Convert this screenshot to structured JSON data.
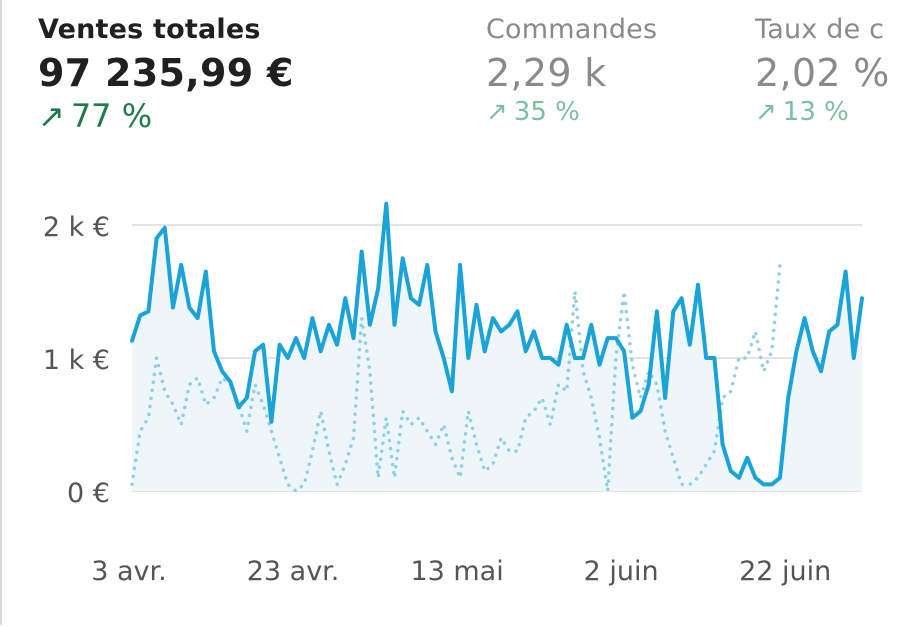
{
  "metrics": [
    {
      "label": "Ventes totales",
      "value": "97 235,99 €",
      "delta": "77 %",
      "arrow": "↗",
      "active": true
    },
    {
      "label": "Commandes",
      "value": "2,29 k",
      "delta": "35 %",
      "arrow": "↗",
      "active": false
    },
    {
      "label": "Taux de c",
      "value": "2,02 %",
      "delta": "13 %",
      "arrow": "↗",
      "active": false
    }
  ],
  "colors": {
    "current_line": "#1aa3d9",
    "previous_line": "#8fd0e8",
    "area_fill": "#eef6f9",
    "grid": "#dcdcdc",
    "positive_active": "#1f7a4c",
    "positive_muted": "#7cbf9e"
  },
  "chart_data": {
    "type": "line",
    "y_ticks": [
      "2 k €",
      "1 k €",
      "0 €"
    ],
    "y_tick_values": [
      2000,
      1000,
      0
    ],
    "ylim": [
      0,
      2000
    ],
    "x_ticks": [
      "3 avr.",
      "23 avr.",
      "13 mai",
      "2 juin",
      "22 juin"
    ],
    "x_tick_days": [
      0,
      20,
      40,
      60,
      80
    ],
    "xlim": [
      0,
      89
    ],
    "grid": true,
    "series": [
      {
        "style": "solid",
        "values": [
          1130,
          1320,
          1350,
          1900,
          1980,
          1380,
          1700,
          1380,
          1300,
          1650,
          1050,
          900,
          820,
          630,
          700,
          1050,
          1100,
          520,
          1100,
          1000,
          1150,
          1000,
          1300,
          1050,
          1250,
          1100,
          1450,
          1150,
          1800,
          1250,
          1520,
          2160,
          1250,
          1750,
          1450,
          1400,
          1700,
          1200,
          1000,
          750,
          1700,
          1000,
          1400,
          1050,
          1300,
          1200,
          1250,
          1350,
          1050,
          1200,
          1000,
          1000,
          950,
          1250,
          1000,
          1000,
          1250,
          950,
          1150,
          1150,
          1050,
          550,
          600,
          800,
          1350,
          700,
          1350,
          1450,
          1100,
          1550,
          1000,
          1000,
          350,
          150,
          100,
          250,
          100,
          50,
          50,
          100,
          700,
          1050,
          1300,
          1050,
          900,
          1200,
          1250,
          1650,
          1000,
          1450
        ]
      },
      {
        "style": "dotted",
        "values": [
          50,
          450,
          550,
          1000,
          750,
          650,
          500,
          800,
          850,
          650,
          700,
          850,
          800,
          650,
          450,
          800,
          650,
          450,
          250,
          50,
          0,
          50,
          300,
          600,
          300,
          50,
          200,
          400,
          1300,
          900,
          100,
          550,
          100,
          600,
          500,
          550,
          450,
          350,
          500,
          250,
          100,
          600,
          350,
          150,
          200,
          400,
          300,
          300,
          550,
          600,
          700,
          500,
          800,
          750,
          1500,
          900,
          700,
          400,
          0,
          1000,
          1500,
          950,
          700,
          900,
          800,
          450,
          250,
          50,
          50,
          100,
          200,
          300,
          700,
          750,
          1000,
          1000,
          1200,
          900,
          1050,
          1700
        ]
      }
    ]
  }
}
